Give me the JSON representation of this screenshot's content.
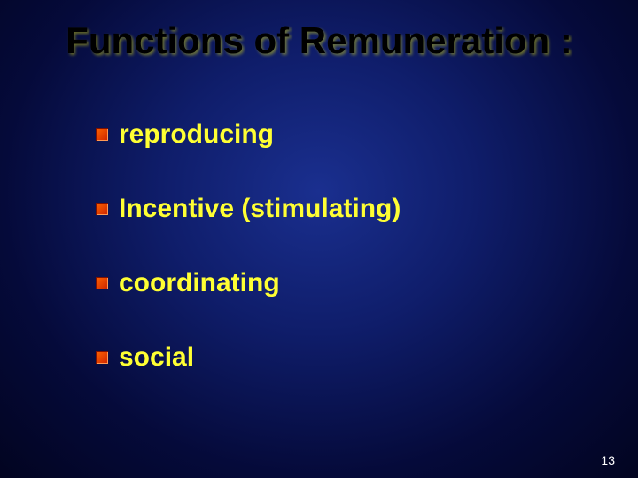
{
  "title": "Functions of Remuneration :",
  "title_color": "#000000",
  "title_fontsize": 42,
  "title_fontweight": "bold",
  "background_gradient": [
    "#1a2f8f",
    "#0f1d6a",
    "#050a3a",
    "#020420"
  ],
  "bullet_colors": [
    "#ff6600",
    "#cc2200"
  ],
  "items": [
    {
      "label": "reproducing"
    },
    {
      "label": "Incentive (stimulating)"
    },
    {
      "label": "coordinating"
    },
    {
      "label": "social"
    }
  ],
  "item_text_color": "#ffff33",
  "item_fontsize": 30,
  "item_fontweight": "bold",
  "item_spacing": 50,
  "page_number": "13",
  "page_number_color": "#ffffff",
  "page_number_fontsize": 14,
  "slide_width": 720,
  "slide_height": 540
}
